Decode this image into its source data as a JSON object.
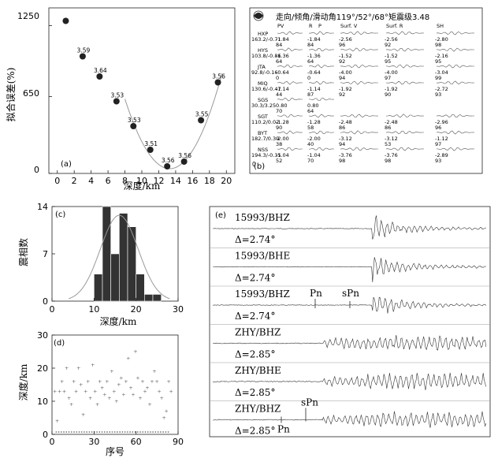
{
  "chart_data": [
    {
      "panel": "(a)",
      "type": "scatter",
      "xlabel": "深度/km",
      "ylabel": "拟合误差(%)",
      "xlim": [
        -1,
        21
      ],
      "ylim": [
        0,
        1400
      ],
      "xticks": [
        0,
        2,
        4,
        6,
        8,
        10,
        12,
        14,
        16,
        18,
        20
      ],
      "yticks": [
        0,
        650,
        1250
      ],
      "points": [
        {
          "x": 1,
          "y": 1290,
          "label": ""
        },
        {
          "x": 3,
          "y": 990,
          "label": "3.59"
        },
        {
          "x": 5,
          "y": 820,
          "label": "3.64"
        },
        {
          "x": 7,
          "y": 610,
          "label": "3.53"
        },
        {
          "x": 9,
          "y": 400,
          "label": "3.53"
        },
        {
          "x": 11,
          "y": 200,
          "label": "3.51"
        },
        {
          "x": 13,
          "y": 60,
          "label": "3.56"
        },
        {
          "x": 15,
          "y": 100,
          "label": "3.56"
        },
        {
          "x": 17,
          "y": 450,
          "label": "3.55"
        },
        {
          "x": 19,
          "y": 770,
          "label": "3.56"
        }
      ],
      "fit_curve": {
        "min_x": 13.3,
        "min_y": 40,
        "coef": 21
      }
    },
    {
      "panel": "(b)",
      "type": "table",
      "title": "走向/倾角/滑动角119°/52°/68°矩震级3.48",
      "headers": [
        "PV",
        "R",
        "P",
        "Surf. V",
        "Surf. R",
        "SH"
      ],
      "rows": [
        {
          "sta": "HXP",
          "dist": "163.2/-0.71",
          "vals": [
            [
              "-1.84",
              "84"
            ],
            [
              "-1.84",
              "84"
            ],
            [
              "-2.56",
              "96"
            ],
            [
              "-2.56",
              "92"
            ],
            [
              "-2.80",
              "98"
            ]
          ]
        },
        {
          "sta": "HYS",
          "dist": "103.8/-0.86",
          "vals": [
            [
              "-1.36",
              "64"
            ],
            [
              "-1.36",
              "64"
            ],
            [
              "-1.52",
              "92"
            ],
            [
              "-1.52",
              "95"
            ],
            [
              "-2.16",
              "95"
            ]
          ]
        },
        {
          "sta": "JTA",
          "dist": "92.8/-0.16",
          "vals": [
            [
              "-0.64",
              "0"
            ],
            [
              "-0.64",
              "0"
            ],
            [
              "-4.00",
              "94"
            ],
            [
              "-4.00",
              "97"
            ],
            [
              "-3.04",
              "99"
            ]
          ]
        },
        {
          "sta": "MIQ",
          "dist": "130.6/-0.47",
          "vals": [
            [
              "-1.14",
              "44"
            ],
            [
              "-1.14",
              "87"
            ],
            [
              "-1.92",
              "92"
            ],
            [
              "-1.92",
              "90"
            ],
            [
              "-2.72",
              "93"
            ]
          ]
        },
        {
          "sta": "SGS",
          "dist": "30.3/3.25",
          "vals": [
            [
              "0.80",
              "70"
            ],
            [
              "0.80",
              "64"
            ],
            [
              "",
              ""
            ],
            [
              "",
              ""
            ],
            [
              "",
              ""
            ]
          ]
        },
        {
          "sta": "SGT",
          "dist": "110.2/0.02",
          "vals": [
            [
              "-1.28",
              "90"
            ],
            [
              "-1.28",
              "58"
            ],
            [
              "-2.48",
              "86"
            ],
            [
              "-2.48",
              "86"
            ],
            [
              "-2.96",
              "96"
            ]
          ]
        },
        {
          "sta": "BYT",
          "dist": "182.7/0.39",
          "vals": [
            [
              "-2.00",
              "38"
            ],
            [
              "-2.00",
              "40"
            ],
            [
              "-3.12",
              "94"
            ],
            [
              "-3.12",
              "53"
            ],
            [
              "-1.12",
              "97"
            ]
          ]
        },
        {
          "sta": "NSS",
          "dist": "194.3/-0.35",
          "vals": [
            [
              "-1.04",
              "52"
            ],
            [
              "-1.04",
              "70"
            ],
            [
              "-3.76",
              "98"
            ],
            [
              "-3.76",
              "98"
            ],
            [
              "-2.89",
              "93"
            ]
          ]
        }
      ],
      "extra": "0"
    },
    {
      "panel": "(c)",
      "type": "bar",
      "xlabel": "深度/km",
      "ylabel": "震相数",
      "xlim": [
        0,
        30
      ],
      "ylim": [
        0,
        14
      ],
      "xticks": [
        0,
        10,
        20,
        30
      ],
      "yticks": [
        0,
        7,
        14
      ],
      "bins": [
        {
          "x0": 10,
          "x1": 12,
          "v": 4
        },
        {
          "x0": 12,
          "x1": 14,
          "v": 14
        },
        {
          "x0": 14,
          "x1": 16,
          "v": 7
        },
        {
          "x0": 16,
          "x1": 18,
          "v": 13
        },
        {
          "x0": 18,
          "x1": 20,
          "v": 11
        },
        {
          "x0": 20,
          "x1": 22,
          "v": 4
        },
        {
          "x0": 22,
          "x1": 24,
          "v": 1
        },
        {
          "x0": 24,
          "x1": 26,
          "v": 1
        }
      ],
      "gauss": {
        "mu": 16,
        "sigma": 4.5,
        "peak": 12.7,
        "from": 4,
        "to": 28
      }
    },
    {
      "panel": "(d)",
      "type": "scatter",
      "xlabel": "序号",
      "ylabel": "深度/km",
      "xlim": [
        0,
        90
      ],
      "ylim": [
        0,
        30
      ],
      "xticks": [
        0,
        30,
        60,
        90
      ],
      "yticks": [
        0,
        10,
        20,
        30
      ],
      "y": [
        13,
        4,
        13,
        16,
        13,
        20,
        11,
        9,
        16,
        13,
        20,
        15,
        6,
        13,
        16,
        11,
        21,
        13,
        9,
        16,
        14,
        12,
        16,
        11,
        19,
        13,
        10,
        15,
        17,
        12,
        16,
        23,
        14,
        12,
        25,
        17,
        11,
        16,
        13,
        14,
        9,
        16,
        19,
        16,
        13,
        11,
        5,
        7,
        16,
        13
      ],
      "baseline_count": 45,
      "baseline_y": 0.7
    },
    {
      "panel": "(e)",
      "type": "line",
      "traces": [
        {
          "name": "15993/BHZ",
          "delta": "Δ=2.74°",
          "phases": []
        },
        {
          "name": "15993/BHE",
          "delta": "Δ=2.74°",
          "phases": []
        },
        {
          "name": "15993/BHZ",
          "delta": "Δ=2.74°",
          "phases": [
            "Pn",
            "sPn"
          ]
        },
        {
          "name": "ZHY/BHZ",
          "delta": "Δ=2.85°",
          "phases": []
        },
        {
          "name": "ZHY/BHE",
          "delta": "Δ=2.85°",
          "phases": []
        },
        {
          "name": "ZHY/BHZ",
          "delta": "Δ=2.85°",
          "phases": [
            "sPn",
            "Pn"
          ]
        }
      ]
    }
  ]
}
